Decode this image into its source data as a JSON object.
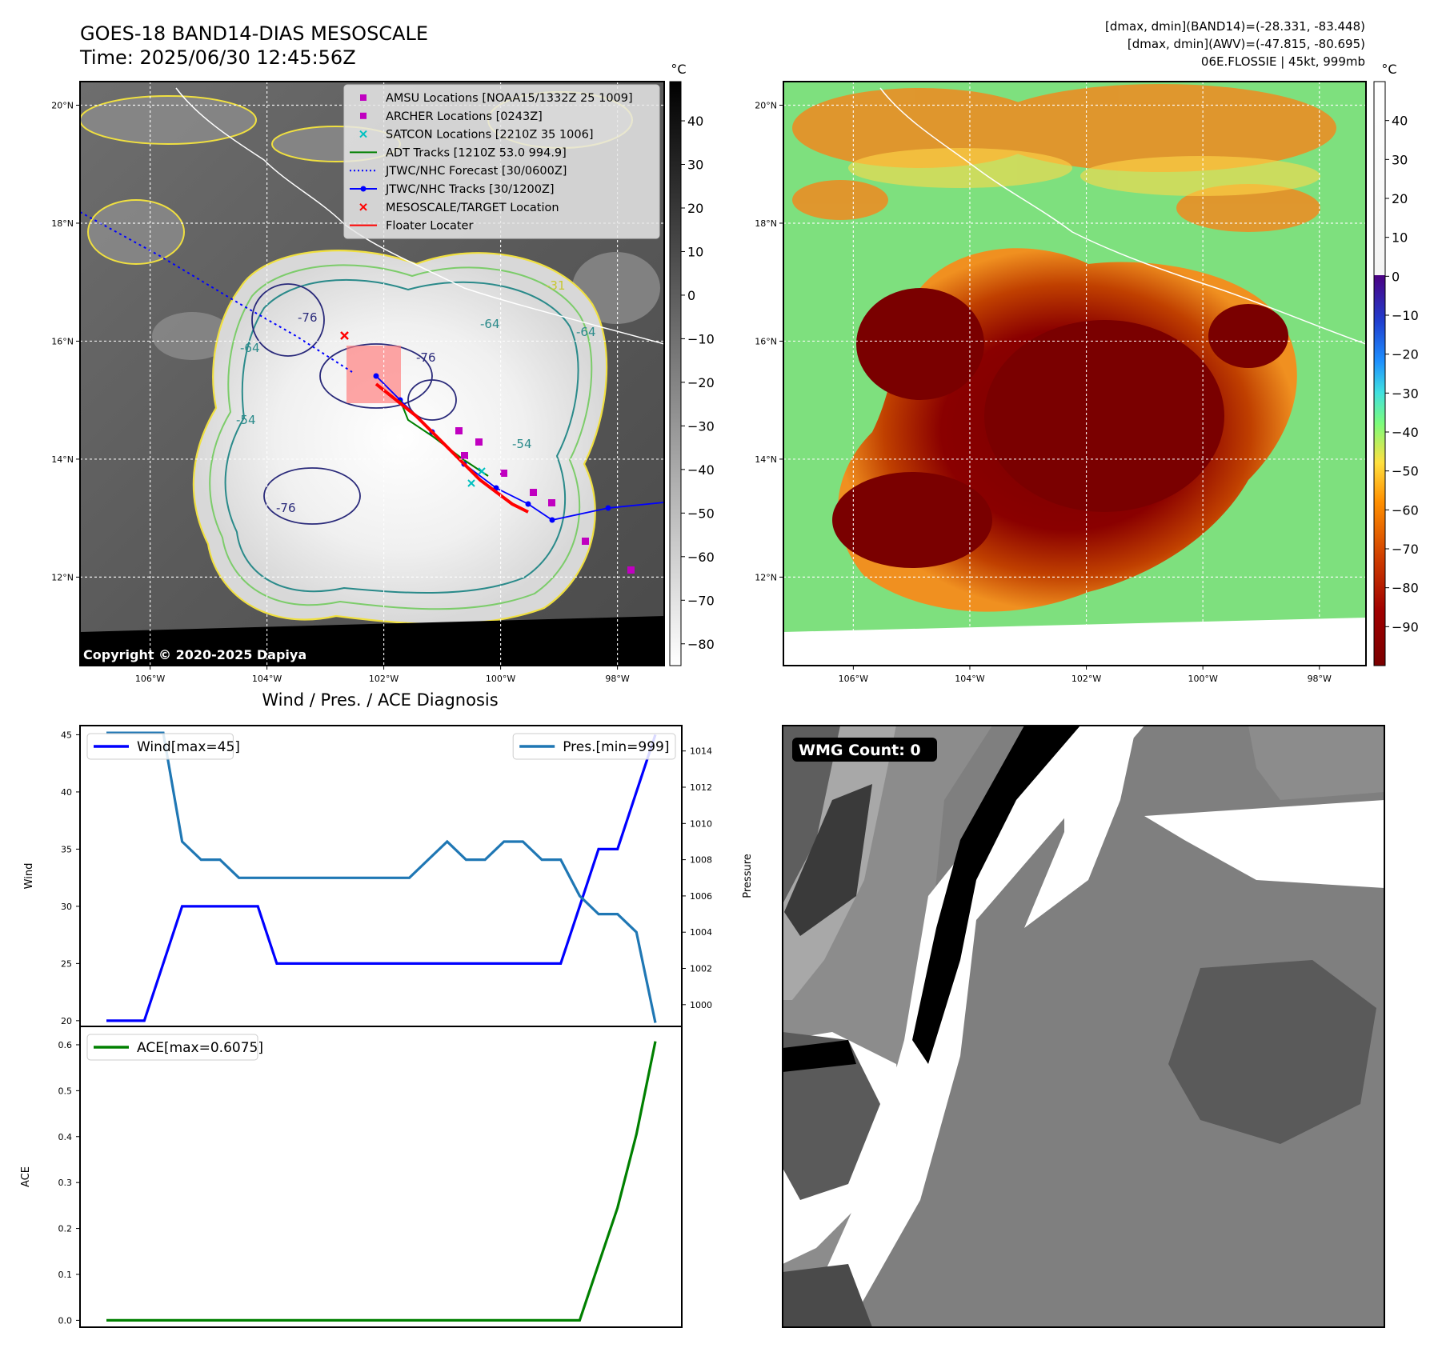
{
  "header": {
    "title": "GOES-18 BAND14-DIAS MESOSCALE",
    "time": "Time: 2025/06/30 12:45:56Z",
    "info_lines": [
      "[dmax, dmin](BAND14)=(-28.331, -83.448)",
      "[dmax, dmin](AWV)=(-47.815, -80.695)",
      "06E.FLOSSIE | 45kt, 999mb"
    ]
  },
  "copyright": "Copyright © 2020-2025 Dapiya",
  "map": {
    "lon_labels": [
      "106°W",
      "104°W",
      "102°W",
      "100°W",
      "98°W"
    ],
    "lat_labels": [
      "20°N",
      "18°N",
      "16°N",
      "14°N",
      "12°N"
    ],
    "lon_ticks": [
      -106,
      -104,
      -102,
      -100,
      -98
    ],
    "lat_ticks": [
      20,
      18,
      16,
      14,
      12
    ],
    "extent": {
      "lon": [
        -107.2,
        -97.2
      ],
      "lat": [
        10.5,
        20.4
      ]
    },
    "contour_labels": [
      "-76",
      "-64",
      "-76",
      "-64",
      "-64",
      "-54",
      "-76",
      "-54",
      "-31"
    ]
  },
  "legend": {
    "items": [
      {
        "label": "AMSU Locations [NOAA15/1332Z 25 1009]",
        "marker": "square",
        "color": "#c000c0"
      },
      {
        "label": "ARCHER Locations [0243Z]",
        "marker": "square",
        "color": "#c000c0"
      },
      {
        "label": "SATCON Locations [2210Z 35 1006]",
        "marker": "x",
        "color": "#00c0c0"
      },
      {
        "label": "ADT Tracks [1210Z 53.0 994.9]",
        "marker": "line",
        "color": "#008000"
      },
      {
        "label": "JTWC/NHC Forecast [30/0600Z]",
        "marker": "dotted",
        "color": "#0000ff"
      },
      {
        "label": "JTWC/NHC Tracks [30/1200Z]",
        "marker": "line-dot",
        "color": "#0000ff"
      },
      {
        "label": "MESOSCALE/TARGET Location",
        "marker": "x",
        "color": "#ff0000"
      },
      {
        "label": "Floater Locater",
        "marker": "line",
        "color": "#ff0000"
      }
    ]
  },
  "colorbar_band14": {
    "unit": "°C",
    "ticks": [
      "40",
      "30",
      "20",
      "10",
      "0",
      "−10",
      "−20",
      "−30",
      "−40",
      "−50",
      "−60",
      "−70",
      "−80"
    ],
    "values": [
      40,
      30,
      20,
      10,
      0,
      -10,
      -20,
      -30,
      -40,
      -50,
      -60,
      -70,
      -80
    ],
    "range": [
      -85,
      49
    ]
  },
  "colorbar_awv": {
    "unit": "°C",
    "ticks": [
      "40",
      "30",
      "20",
      "10",
      "0",
      "−10",
      "−20",
      "−30",
      "−40",
      "−50",
      "−60",
      "−70",
      "−80",
      "−90"
    ],
    "values": [
      40,
      30,
      20,
      10,
      0,
      -10,
      -20,
      -30,
      -40,
      -50,
      -60,
      -70,
      -80,
      -90
    ],
    "range": [
      -100,
      50
    ]
  },
  "chart_data": [
    {
      "type": "line",
      "title": "Wind / Pres. / ACE Diagnosis",
      "ylabel": "Wind",
      "ylabel_right": "Pressure",
      "ylim": [
        19.5,
        45.8
      ],
      "ylim_right": [
        998.8,
        1015.4
      ],
      "yticks": [
        20,
        25,
        30,
        35,
        40,
        45
      ],
      "yticks_right": [
        1000,
        1002,
        1004,
        1006,
        1008,
        1010,
        1012,
        1014
      ],
      "x": [
        0,
        1,
        2,
        3,
        4,
        5,
        6,
        7,
        8,
        9,
        10,
        11,
        12,
        13,
        14,
        15,
        16,
        17,
        18,
        19,
        20,
        21,
        22,
        23,
        24,
        25,
        26,
        27,
        28,
        29
      ],
      "series": [
        {
          "name": "Wind[max=45]",
          "axis": "left",
          "color": "#0000ff",
          "values": [
            20,
            20,
            20,
            25,
            30,
            30,
            30,
            30,
            30,
            25,
            25,
            25,
            25,
            25,
            25,
            25,
            25,
            25,
            25,
            25,
            25,
            25,
            25,
            25,
            25,
            30,
            35,
            35,
            40,
            45
          ]
        },
        {
          "name": "Pres.[min=999]",
          "axis": "right",
          "color": "#1f77b4",
          "values": [
            1015,
            1015,
            1015,
            1015,
            1009,
            1008,
            1008,
            1007,
            1007,
            1007,
            1007,
            1007,
            1007,
            1007,
            1007,
            1007,
            1007,
            1008,
            1009,
            1008,
            1008,
            1009,
            1009,
            1008,
            1008,
            1006,
            1005,
            1005,
            1004,
            999
          ]
        }
      ],
      "legend": [
        "top-left",
        "top-right"
      ]
    },
    {
      "type": "line",
      "ylabel": "ACE",
      "ylim": [
        -0.015,
        0.64
      ],
      "yticks": [
        0.0,
        0.1,
        0.2,
        0.3,
        0.4,
        0.5,
        0.6
      ],
      "ytick_labels": [
        "0.0",
        "0.1",
        "0.2",
        "0.3",
        "0.4",
        "0.5",
        "0.6"
      ],
      "x": [
        0,
        1,
        2,
        3,
        4,
        5,
        6,
        7,
        8,
        9,
        10,
        11,
        12,
        13,
        14,
        15,
        16,
        17,
        18,
        19,
        20,
        21,
        22,
        23,
        24,
        25,
        26,
        27,
        28,
        29
      ],
      "series": [
        {
          "name": "ACE[max=0.6075]",
          "color": "#008000",
          "values": [
            0,
            0,
            0,
            0,
            0,
            0,
            0,
            0,
            0,
            0,
            0,
            0,
            0,
            0,
            0,
            0,
            0,
            0,
            0,
            0,
            0,
            0,
            0,
            0,
            0,
            0,
            0.1225,
            0.245,
            0.405,
            0.6075
          ]
        }
      ],
      "legend": "top-left"
    }
  ],
  "wmg": {
    "label": "WMG Count: 0"
  }
}
